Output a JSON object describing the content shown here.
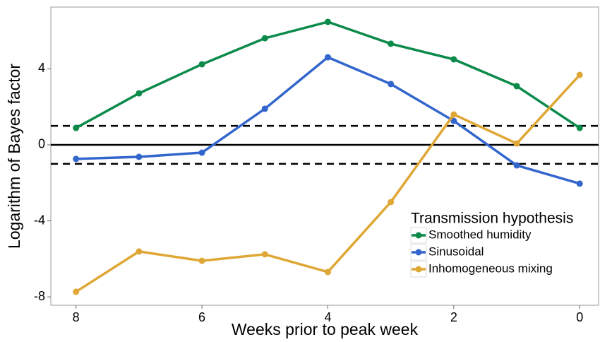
{
  "chart_data": {
    "type": "line",
    "x_label": "Weeks prior to peak week",
    "y_label": "Logarithm of Bayes factor",
    "x": [
      8,
      7,
      6,
      5,
      4,
      3,
      2,
      1,
      0
    ],
    "series": [
      {
        "name": "Smoothed humidity",
        "color": "#0b8a4a",
        "values": [
          0.89,
          2.71,
          4.24,
          5.61,
          6.47,
          5.32,
          4.5,
          3.09,
          0.89
        ]
      },
      {
        "name": "Sinusoidal",
        "color": "#3366cc",
        "values": [
          -0.74,
          -0.63,
          -0.41,
          1.9,
          4.61,
          3.2,
          1.26,
          -1.08,
          -2.04
        ]
      },
      {
        "name": "Inhomogeneous mixing",
        "color": "#dfa735",
        "values": [
          -7.73,
          -5.61,
          -6.1,
          -5.76,
          -6.69,
          -3.01,
          1.6,
          0.07,
          3.68
        ]
      }
    ],
    "legend_title": "Transmission hypothesis",
    "legend_position": "lower-right",
    "xlim": [
      8.4,
      -0.3
    ],
    "xticks": [
      8,
      6,
      4,
      2,
      0
    ],
    "ylim": [
      -8.44,
      7.25
    ],
    "yticks": [
      -8,
      -4,
      0,
      4
    ],
    "reference_lines": [
      {
        "y": 1,
        "dashed": true
      },
      {
        "y": 0,
        "dashed": false
      },
      {
        "y": -1,
        "dashed": true
      }
    ],
    "grid": false
  }
}
